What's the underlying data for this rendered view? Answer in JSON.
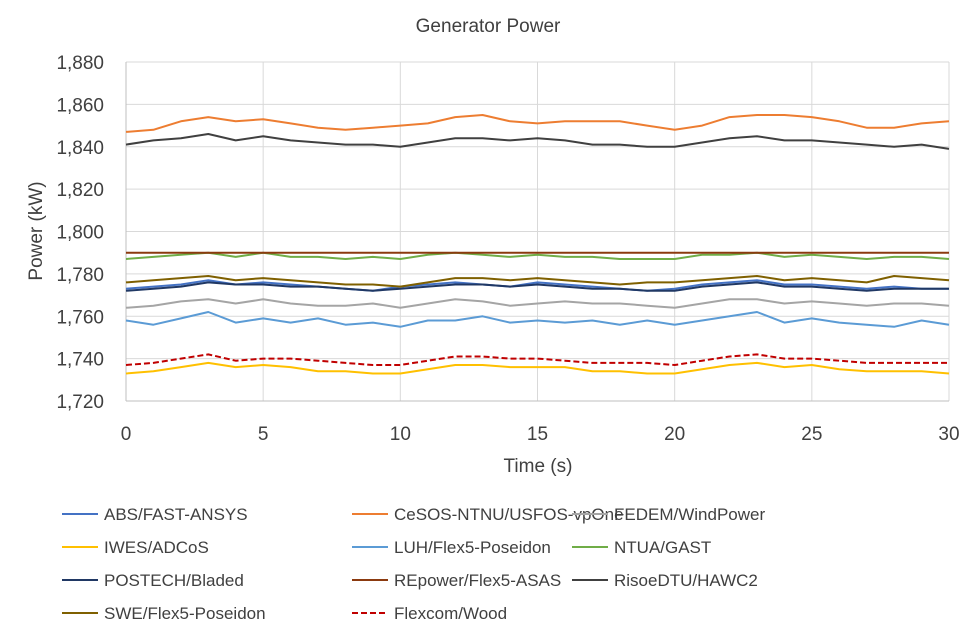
{
  "chart_data": {
    "type": "line",
    "title": "Generator Power",
    "xlabel": "Time (s)",
    "ylabel": "Power (kW)",
    "xlim": [
      0,
      30
    ],
    "ylim": [
      1720,
      1880
    ],
    "x_ticks": [
      0,
      5,
      10,
      15,
      20,
      25,
      30
    ],
    "y_ticks": [
      1720,
      1740,
      1760,
      1780,
      1800,
      1820,
      1840,
      1860,
      1880
    ],
    "x_tick_labels": [
      "0",
      "5",
      "10",
      "15",
      "20",
      "25",
      "30"
    ],
    "y_tick_labels": [
      "1,720",
      "1,740",
      "1,760",
      "1,780",
      "1,800",
      "1,820",
      "1,840",
      "1,860",
      "1,880"
    ],
    "grid": true,
    "legend_position": "bottom",
    "x": [
      0,
      1,
      2,
      3,
      4,
      5,
      6,
      7,
      8,
      9,
      10,
      11,
      12,
      13,
      14,
      15,
      16,
      17,
      18,
      19,
      20,
      21,
      22,
      23,
      24,
      25,
      26,
      27,
      28,
      29,
      30
    ],
    "series": [
      {
        "name": "ABS/FAST-ANSYS",
        "color": "#4472c4",
        "dash": "solid",
        "values": [
          1773,
          1774,
          1775,
          1777,
          1775,
          1776,
          1775,
          1774,
          1773,
          1772,
          1774,
          1775,
          1776,
          1775,
          1774,
          1776,
          1775,
          1774,
          1773,
          1772,
          1773,
          1775,
          1776,
          1777,
          1775,
          1775,
          1774,
          1773,
          1774,
          1773,
          1773
        ]
      },
      {
        "name": "CeSOS-NTNU/USFOS-vpOne",
        "color": "#ed7d31",
        "dash": "solid",
        "values": [
          1847,
          1848,
          1852,
          1854,
          1852,
          1853,
          1851,
          1849,
          1848,
          1849,
          1850,
          1851,
          1854,
          1855,
          1852,
          1851,
          1852,
          1852,
          1852,
          1850,
          1848,
          1850,
          1854,
          1855,
          1855,
          1854,
          1852,
          1849,
          1849,
          1851,
          1852
        ]
      },
      {
        "name": "FEDEM/WindPower",
        "color": "#a5a5a5",
        "dash": "solid",
        "values": [
          1764,
          1765,
          1767,
          1768,
          1766,
          1768,
          1766,
          1765,
          1765,
          1766,
          1764,
          1766,
          1768,
          1767,
          1765,
          1766,
          1767,
          1766,
          1766,
          1765,
          1764,
          1766,
          1768,
          1768,
          1766,
          1767,
          1766,
          1765,
          1766,
          1766,
          1765
        ]
      },
      {
        "name": "IWES/ADCoS",
        "color": "#ffc000",
        "dash": "solid",
        "values": [
          1733,
          1734,
          1736,
          1738,
          1736,
          1737,
          1736,
          1734,
          1734,
          1733,
          1733,
          1735,
          1737,
          1737,
          1736,
          1736,
          1736,
          1734,
          1734,
          1733,
          1733,
          1735,
          1737,
          1738,
          1736,
          1737,
          1735,
          1734,
          1734,
          1734,
          1733
        ]
      },
      {
        "name": "LUH/Flex5-Poseidon",
        "color": "#5b9bd5",
        "dash": "solid",
        "values": [
          1758,
          1756,
          1759,
          1762,
          1757,
          1759,
          1757,
          1759,
          1756,
          1757,
          1755,
          1758,
          1758,
          1760,
          1757,
          1758,
          1757,
          1758,
          1756,
          1758,
          1756,
          1758,
          1760,
          1762,
          1757,
          1759,
          1757,
          1756,
          1755,
          1758,
          1756
        ]
      },
      {
        "name": "NTUA/GAST",
        "color": "#70ad47",
        "dash": "solid",
        "values": [
          1787,
          1788,
          1789,
          1790,
          1788,
          1790,
          1788,
          1788,
          1787,
          1788,
          1787,
          1789,
          1790,
          1789,
          1788,
          1789,
          1788,
          1788,
          1787,
          1787,
          1787,
          1789,
          1789,
          1790,
          1788,
          1789,
          1788,
          1787,
          1788,
          1788,
          1787
        ]
      },
      {
        "name": "POSTECH/Bladed",
        "color": "#203864",
        "dash": "solid",
        "values": [
          1772,
          1773,
          1774,
          1776,
          1775,
          1775,
          1774,
          1774,
          1773,
          1772,
          1773,
          1774,
          1775,
          1775,
          1774,
          1775,
          1774,
          1773,
          1773,
          1772,
          1772,
          1774,
          1775,
          1776,
          1774,
          1774,
          1773,
          1772,
          1773,
          1773,
          1773
        ]
      },
      {
        "name": "REpower/Flex5-ASAS",
        "color": "#8b3a0f",
        "dash": "solid",
        "values": [
          1790,
          1790,
          1790,
          1790,
          1790,
          1790,
          1790,
          1790,
          1790,
          1790,
          1790,
          1790,
          1790,
          1790,
          1790,
          1790,
          1790,
          1790,
          1790,
          1790,
          1790,
          1790,
          1790,
          1790,
          1790,
          1790,
          1790,
          1790,
          1790,
          1790,
          1790
        ]
      },
      {
        "name": "RisoeDTU/HAWC2",
        "color": "#404040",
        "dash": "solid",
        "values": [
          1841,
          1843,
          1844,
          1846,
          1843,
          1845,
          1843,
          1842,
          1841,
          1841,
          1840,
          1842,
          1844,
          1844,
          1843,
          1844,
          1843,
          1841,
          1841,
          1840,
          1840,
          1842,
          1844,
          1845,
          1843,
          1843,
          1842,
          1841,
          1840,
          1841,
          1839
        ]
      },
      {
        "name": "SWE/Flex5-Poseidon",
        "color": "#7f6000",
        "dash": "solid",
        "values": [
          1776,
          1777,
          1778,
          1779,
          1777,
          1778,
          1777,
          1776,
          1775,
          1775,
          1774,
          1776,
          1778,
          1778,
          1777,
          1778,
          1777,
          1776,
          1775,
          1776,
          1776,
          1777,
          1778,
          1779,
          1777,
          1778,
          1777,
          1776,
          1779,
          1778,
          1777
        ]
      },
      {
        "name": "Flexcom/Wood",
        "color": "#c00000",
        "dash": "dashed",
        "values": [
          1737,
          1738,
          1740,
          1742,
          1739,
          1740,
          1740,
          1739,
          1738,
          1737,
          1737,
          1739,
          1741,
          1741,
          1740,
          1740,
          1739,
          1738,
          1738,
          1738,
          1737,
          1739,
          1741,
          1742,
          1740,
          1740,
          1739,
          1738,
          1738,
          1738,
          1738
        ]
      }
    ]
  }
}
